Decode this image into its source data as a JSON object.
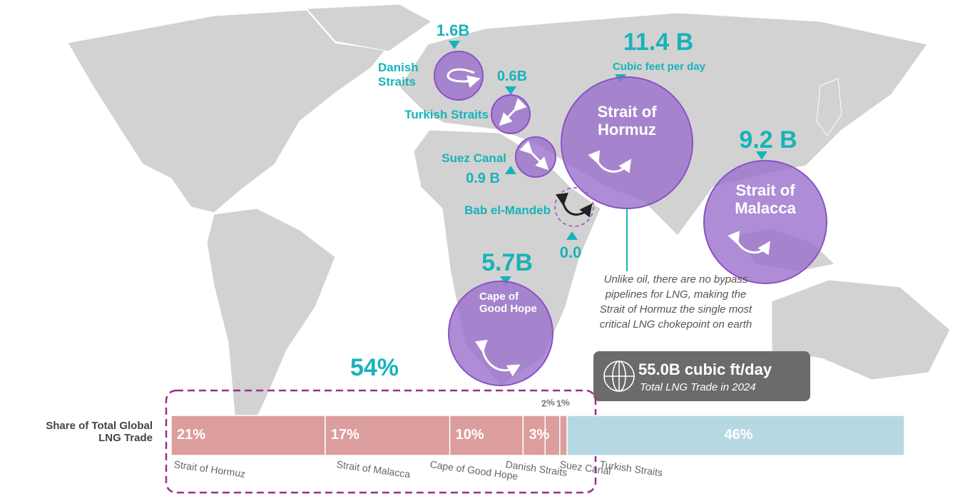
{
  "map": {
    "chokepoints": [
      {
        "name": "Danish Straits",
        "value": "1.6B"
      },
      {
        "name": "Turkish Straits",
        "value": "0.6B"
      },
      {
        "name": "Suez Canal",
        "value": "0.9 B"
      },
      {
        "name": "Bab el-Mandeb",
        "value": "0.0"
      },
      {
        "name": "Strait of Hormuz",
        "value": "11.4 B",
        "unit": "Cubic feet per day"
      },
      {
        "name": "Strait of Malacca",
        "value": "9.2 B"
      },
      {
        "name": "Cape of Good Hope",
        "value": "5.7B"
      }
    ],
    "note": "Unlike oil, there are no bypass pipelines for LNG, making the Strait of Hormuz the single most critical LNG chokepoint on earth",
    "total": {
      "value": "55.0B cubic ft/day",
      "label": "Total LNG Trade in 2024"
    }
  },
  "chart_data": {
    "type": "stacked-bar",
    "title": "Share of Total Global LNG Trade",
    "bracket_label": "54%",
    "xlim": [
      0,
      100
    ],
    "series": [
      {
        "name": "Strait of Hormuz",
        "color": "#dc9e9c",
        "values": [
          21
        ],
        "value_labels": [
          "21%"
        ]
      },
      {
        "name": "Strait of Malacca",
        "color": "#dc9e9c",
        "values": [
          17
        ],
        "value_labels": [
          "17%"
        ]
      },
      {
        "name": "Cape of Good Hope",
        "color": "#dc9e9c",
        "values": [
          10
        ],
        "value_labels": [
          "10%"
        ]
      },
      {
        "name": "Danish Straits",
        "color": "#dc9e9c",
        "values": [
          3
        ],
        "value_labels": [
          "3%"
        ]
      },
      {
        "name": "Suez Canal",
        "color": "#dc9e9c",
        "values": [
          2
        ],
        "value_labels": [
          "2%"
        ]
      },
      {
        "name": "Turkish Straits",
        "color": "#dc9e9c",
        "values": [
          1
        ],
        "value_labels": [
          "1%"
        ]
      },
      {
        "color": "#b6d8e2",
        "values": [
          46
        ],
        "value_labels": [
          "46%"
        ]
      }
    ]
  }
}
